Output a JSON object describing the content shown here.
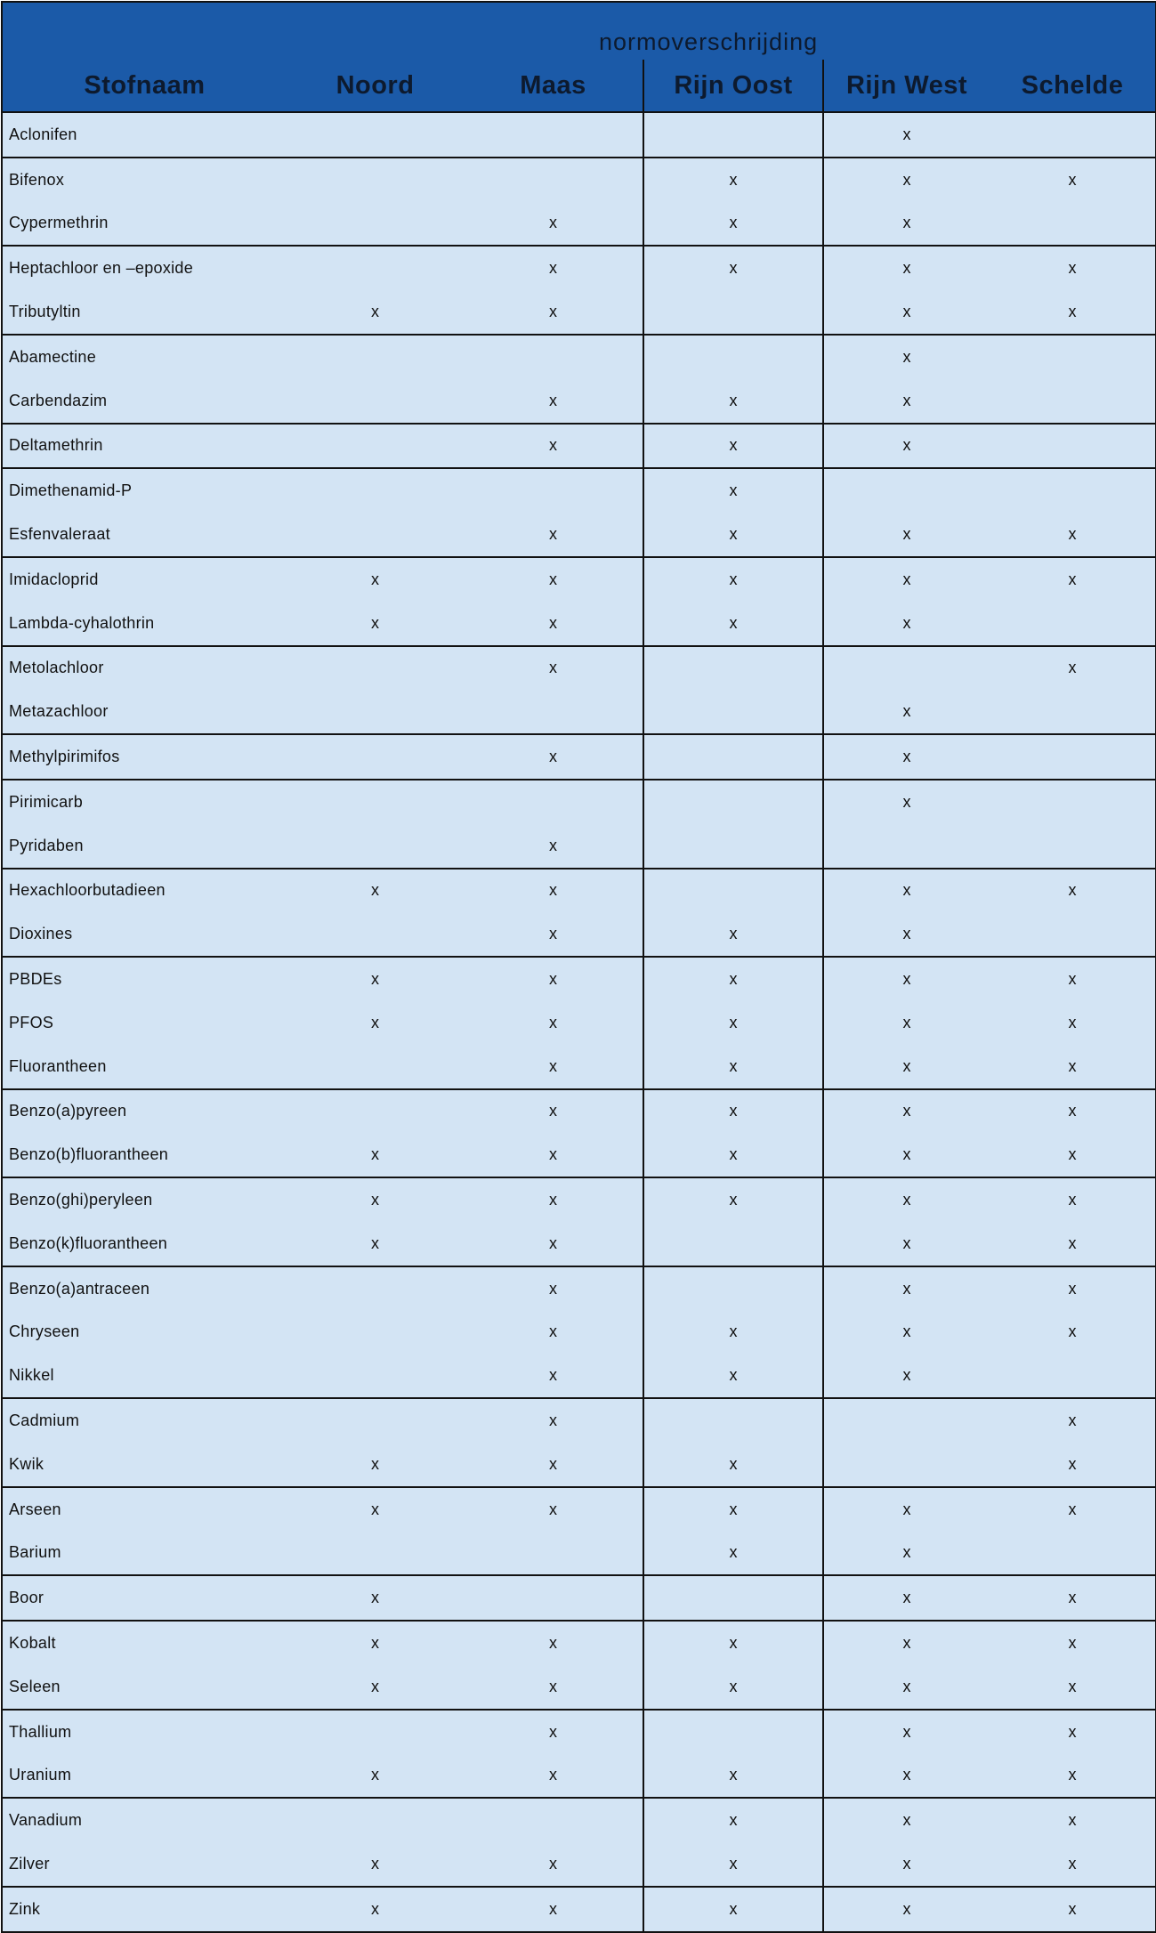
{
  "header": {
    "group_title": "normoverschrijding",
    "columns": [
      "Stofnaam",
      "Noord",
      "Maas",
      "Rijn Oost",
      "Rijn West",
      "Schelde"
    ]
  },
  "colors": {
    "header_bg": "#1b5aa8",
    "row_bg": "#d3e4f4",
    "border": "#111111"
  },
  "groups": [
    [
      {
        "name": "Aclonifen",
        "marks": [
          "",
          "",
          "",
          "x",
          ""
        ]
      }
    ],
    [
      {
        "name": "Bifenox",
        "marks": [
          "",
          "",
          "x",
          "x",
          "x"
        ]
      },
      {
        "name": "Cypermethrin",
        "marks": [
          "",
          "x",
          "x",
          "x",
          ""
        ]
      }
    ],
    [
      {
        "name": "Heptachloor en –epoxide",
        "marks": [
          "",
          "x",
          "x",
          "x",
          "x"
        ]
      },
      {
        "name": "Tributyltin",
        "marks": [
          "x",
          "x",
          "",
          "x",
          "x"
        ]
      }
    ],
    [
      {
        "name": "Abamectine",
        "marks": [
          "",
          "",
          "",
          "x",
          ""
        ]
      },
      {
        "name": "Carbendazim",
        "marks": [
          "",
          "x",
          "x",
          "x",
          ""
        ]
      }
    ],
    [
      {
        "name": "Deltamethrin",
        "marks": [
          "",
          "x",
          "x",
          "x",
          ""
        ]
      }
    ],
    [
      {
        "name": "Dimethenamid-P",
        "marks": [
          "",
          "",
          "x",
          "",
          ""
        ]
      },
      {
        "name": "Esfenvaleraat",
        "marks": [
          "",
          "x",
          "x",
          "x",
          "x"
        ]
      }
    ],
    [
      {
        "name": "Imidacloprid",
        "marks": [
          "x",
          "x",
          "x",
          "x",
          "x"
        ]
      },
      {
        "name": "Lambda-cyhalothrin",
        "marks": [
          "x",
          "x",
          "x",
          "x",
          ""
        ]
      }
    ],
    [
      {
        "name": "Metolachloor",
        "marks": [
          "",
          "x",
          "",
          "",
          "x"
        ]
      },
      {
        "name": "Metazachloor",
        "marks": [
          "",
          "",
          "",
          "x",
          ""
        ]
      }
    ],
    [
      {
        "name": "Methylpirimifos",
        "marks": [
          "",
          "x",
          "",
          "x",
          ""
        ]
      }
    ],
    [
      {
        "name": "Pirimicarb",
        "marks": [
          "",
          "",
          "",
          "x",
          ""
        ]
      },
      {
        "name": "Pyridaben",
        "marks": [
          "",
          "x",
          "",
          "",
          ""
        ]
      }
    ],
    [
      {
        "name": "Hexachloorbutadieen",
        "marks": [
          "x",
          "x",
          "",
          "x",
          "x"
        ]
      },
      {
        "name": "Dioxines",
        "marks": [
          "",
          "x",
          "x",
          "x",
          ""
        ]
      }
    ],
    [
      {
        "name": "PBDEs",
        "marks": [
          "x",
          "x",
          "x",
          "x",
          "x"
        ]
      },
      {
        "name": "PFOS",
        "marks": [
          "x",
          "x",
          "x",
          "x",
          "x"
        ]
      },
      {
        "name": "Fluorantheen",
        "marks": [
          "",
          "x",
          "x",
          "x",
          "x"
        ]
      }
    ],
    [
      {
        "name": "Benzo(a)pyreen",
        "marks": [
          "",
          "x",
          "x",
          "x",
          "x"
        ]
      },
      {
        "name": "Benzo(b)fluorantheen",
        "marks": [
          "x",
          "x",
          "x",
          "x",
          "x"
        ]
      }
    ],
    [
      {
        "name": "Benzo(ghi)peryleen",
        "marks": [
          "x",
          "x",
          "x",
          "x",
          "x"
        ]
      },
      {
        "name": "Benzo(k)fluorantheen",
        "marks": [
          "x",
          "x",
          "",
          "x",
          "x"
        ]
      }
    ],
    [
      {
        "name": "Benzo(a)antraceen",
        "marks": [
          "",
          "x",
          "",
          "x",
          "x"
        ]
      },
      {
        "name": "Chryseen",
        "marks": [
          "",
          "x",
          "x",
          "x",
          "x"
        ]
      },
      {
        "name": "Nikkel",
        "marks": [
          "",
          "x",
          "x",
          "x",
          ""
        ]
      }
    ],
    [
      {
        "name": "Cadmium",
        "marks": [
          "",
          "x",
          "",
          "",
          "x"
        ]
      },
      {
        "name": "Kwik",
        "marks": [
          "x",
          "x",
          "x",
          "",
          "x"
        ]
      }
    ],
    [
      {
        "name": "Arseen",
        "marks": [
          "x",
          "x",
          "x",
          "x",
          "x"
        ]
      },
      {
        "name": "Barium",
        "marks": [
          "",
          "",
          "x",
          "x",
          ""
        ]
      }
    ],
    [
      {
        "name": "Boor",
        "marks": [
          "x",
          "",
          "",
          "x",
          "x"
        ]
      }
    ],
    [
      {
        "name": "Kobalt",
        "marks": [
          "x",
          "x",
          "x",
          "x",
          "x"
        ]
      },
      {
        "name": "Seleen",
        "marks": [
          "x",
          "x",
          "x",
          "x",
          "x"
        ]
      }
    ],
    [
      {
        "name": "Thallium",
        "marks": [
          "",
          "x",
          "",
          "x",
          "x"
        ]
      },
      {
        "name": "Uranium",
        "marks": [
          "x",
          "x",
          "x",
          "x",
          "x"
        ]
      }
    ],
    [
      {
        "name": "Vanadium",
        "marks": [
          "",
          "",
          "x",
          "x",
          "x"
        ]
      },
      {
        "name": "Zilver",
        "marks": [
          "x",
          "x",
          "x",
          "x",
          "x"
        ]
      }
    ],
    [
      {
        "name": "Zink",
        "marks": [
          "x",
          "x",
          "x",
          "x",
          "x"
        ]
      }
    ]
  ]
}
